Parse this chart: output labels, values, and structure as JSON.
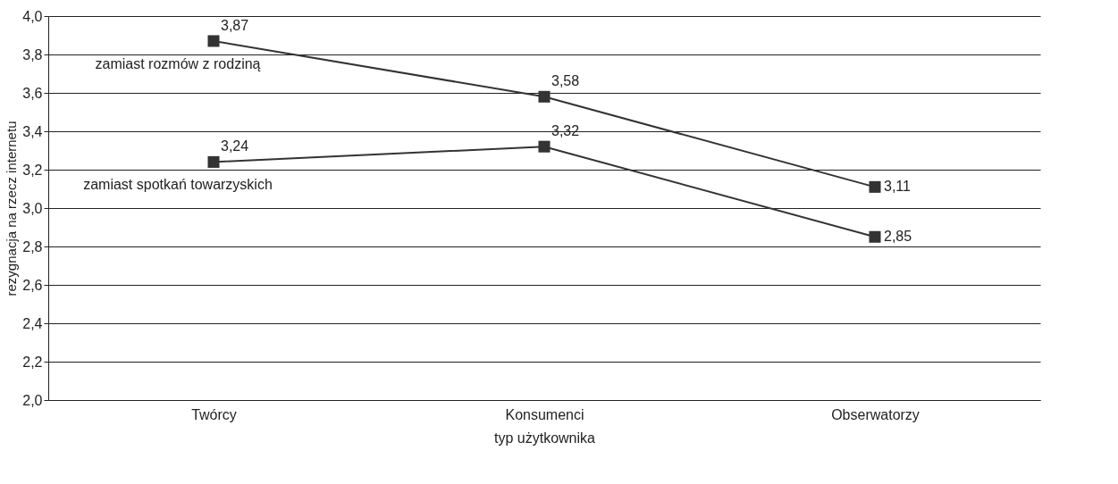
{
  "chart_data": {
    "type": "line",
    "xlabel": "typ użytkownika",
    "ylabel": "rezygnacja na rzecz internetu",
    "categories": [
      "Twórcy",
      "Konsumenci",
      "Obserwatorzy"
    ],
    "series": [
      {
        "name": "zamiast rozmów z rodziną",
        "color": "#333333",
        "values": [
          3.87,
          3.58,
          3.11
        ],
        "value_labels": [
          "3,87",
          "3,58",
          "3,11"
        ]
      },
      {
        "name": "zamiast spotkań towarzyskich",
        "color": "#333333",
        "values": [
          3.24,
          3.32,
          2.85
        ],
        "value_labels": [
          "3,24",
          "3,32",
          "2,85"
        ]
      }
    ],
    "ylim": [
      2.0,
      4.0
    ],
    "yticks": [
      {
        "value": 2.0,
        "label": "2,0"
      },
      {
        "value": 2.2,
        "label": "2,2"
      },
      {
        "value": 2.4,
        "label": "2,4"
      },
      {
        "value": 2.6,
        "label": "2,6"
      },
      {
        "value": 2.8,
        "label": "2,8"
      },
      {
        "value": 3.0,
        "label": "3,0"
      },
      {
        "value": 3.2,
        "label": "3,2"
      },
      {
        "value": 3.4,
        "label": "3,4"
      },
      {
        "value": 3.6,
        "label": "3,6"
      },
      {
        "value": 3.8,
        "label": "3,8"
      },
      {
        "value": 4.0,
        "label": "4,0"
      }
    ],
    "grid": "y",
    "marker": "square",
    "line_style": "solid",
    "legend": "top left"
  }
}
